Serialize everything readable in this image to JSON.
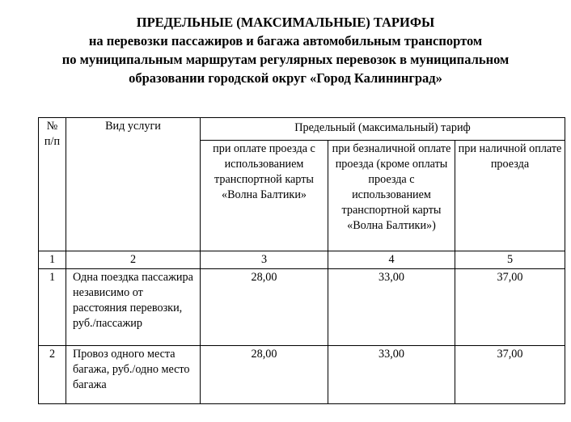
{
  "title": {
    "line1": "ПРЕДЕЛЬНЫЕ (МАКСИМАЛЬНЫЕ) ТАРИФЫ",
    "line2": "на перевозки пассажиров и багажа автомобильным транспортом",
    "line3": "по муниципальным маршрутам регулярных перевозок в муниципальном",
    "line4": "образовании городской округ «Город Калининград»"
  },
  "table": {
    "header": {
      "num": "№ п/п",
      "service": "Вид услуги",
      "tariff": "Предельный (максимальный) тариф",
      "col3": "при оплате проезда с использованием транспортной карты «Волна Балтики»",
      "col4": "при безналичной оплате проезда (кроме оплаты проезда с использованием транспортной карты «Волна Балтики»)",
      "col5": "при наличной оплате проезда"
    },
    "col_numbers": [
      "1",
      "2",
      "3",
      "4",
      "5"
    ],
    "rows": [
      {
        "num": "1",
        "service": "Одна поездка пассажира независимо от расстояния перевозки, руб./пассажир",
        "card": "28,00",
        "cashless": "33,00",
        "cash": "37,00"
      },
      {
        "num": "2",
        "service": "Провоз одного места багажа, руб./одно место багажа",
        "card": "28,00",
        "cashless": "33,00",
        "cash": "37,00"
      }
    ]
  }
}
